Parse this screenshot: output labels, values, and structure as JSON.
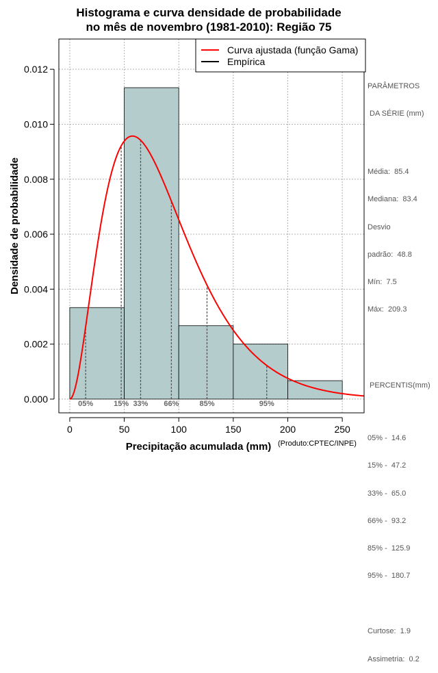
{
  "chart_data": {
    "type": "bar",
    "title_line1": "Histograma e curva densidade de probabilidade",
    "title_line2": "no mês de novembro (1981-2010): Região 75",
    "xlabel": "Precipitação acumulada (mm)",
    "ylabel": "Densidade de probabilidade",
    "credit": "(Produto:CPTEC/INPE)",
    "xlim": [
      -10,
      270
    ],
    "ylim": [
      -0.0005,
      0.0131
    ],
    "x_ticks": [
      0,
      50,
      100,
      150,
      200,
      250
    ],
    "y_ticks": [
      0.0,
      0.002,
      0.004,
      0.006,
      0.008,
      0.01,
      0.012
    ],
    "y_tick_labels": [
      "0.000",
      "0.002",
      "0.004",
      "0.006",
      "0.008",
      "0.010",
      "0.012"
    ],
    "bins": [
      {
        "start": 0,
        "end": 50,
        "density": 0.00333
      },
      {
        "start": 50,
        "end": 100,
        "density": 0.01133
      },
      {
        "start": 100,
        "end": 150,
        "density": 0.00267
      },
      {
        "start": 150,
        "end": 200,
        "density": 0.002
      },
      {
        "start": 200,
        "end": 250,
        "density": 0.00067
      }
    ],
    "gamma_fit": {
      "mean": 85.4,
      "sd": 48.8
    },
    "percentile_markers": [
      {
        "label": "05%",
        "value": 14.6
      },
      {
        "label": "15%",
        "value": 47.2
      },
      {
        "label": "33%",
        "value": 65.0
      },
      {
        "label": "66%",
        "value": 93.2
      },
      {
        "label": "85%",
        "value": 125.9
      },
      {
        "label": "95%",
        "value": 180.7
      }
    ],
    "legend": {
      "position": "top-right",
      "entries": [
        {
          "label": "Curva ajustada (função Gama)",
          "color": "#ff0000"
        },
        {
          "label": "Empírica",
          "color": "#000000"
        }
      ]
    },
    "grid": true,
    "colors": {
      "bar_fill": "#b4cccc",
      "curve": "#ff0000",
      "grid": "#b0b0b0"
    }
  },
  "stats_panel": {
    "params_title1": "PARÂMETROS",
    "params_title2": " DA SÉRIE (mm)",
    "media": "Média:  85.4",
    "mediana": "Mediana:  83.4",
    "desvio1": "Desvio",
    "desvio2": "padrão:  48.8",
    "min": "Mín:  7.5",
    "max": "Máx:  209.3",
    "percentis_title": " PERCENTIS(mm)",
    "p05": "05% -  14.6",
    "p15": "15% -  47.2",
    "p33": "33% -  65.0",
    "p66": "66% -  93.2",
    "p85": "85% -  125.9",
    "p95": "95% -  180.7",
    "curtose": "Curtose:  1.9",
    "assimetria": "Assimetria:  0.2"
  }
}
